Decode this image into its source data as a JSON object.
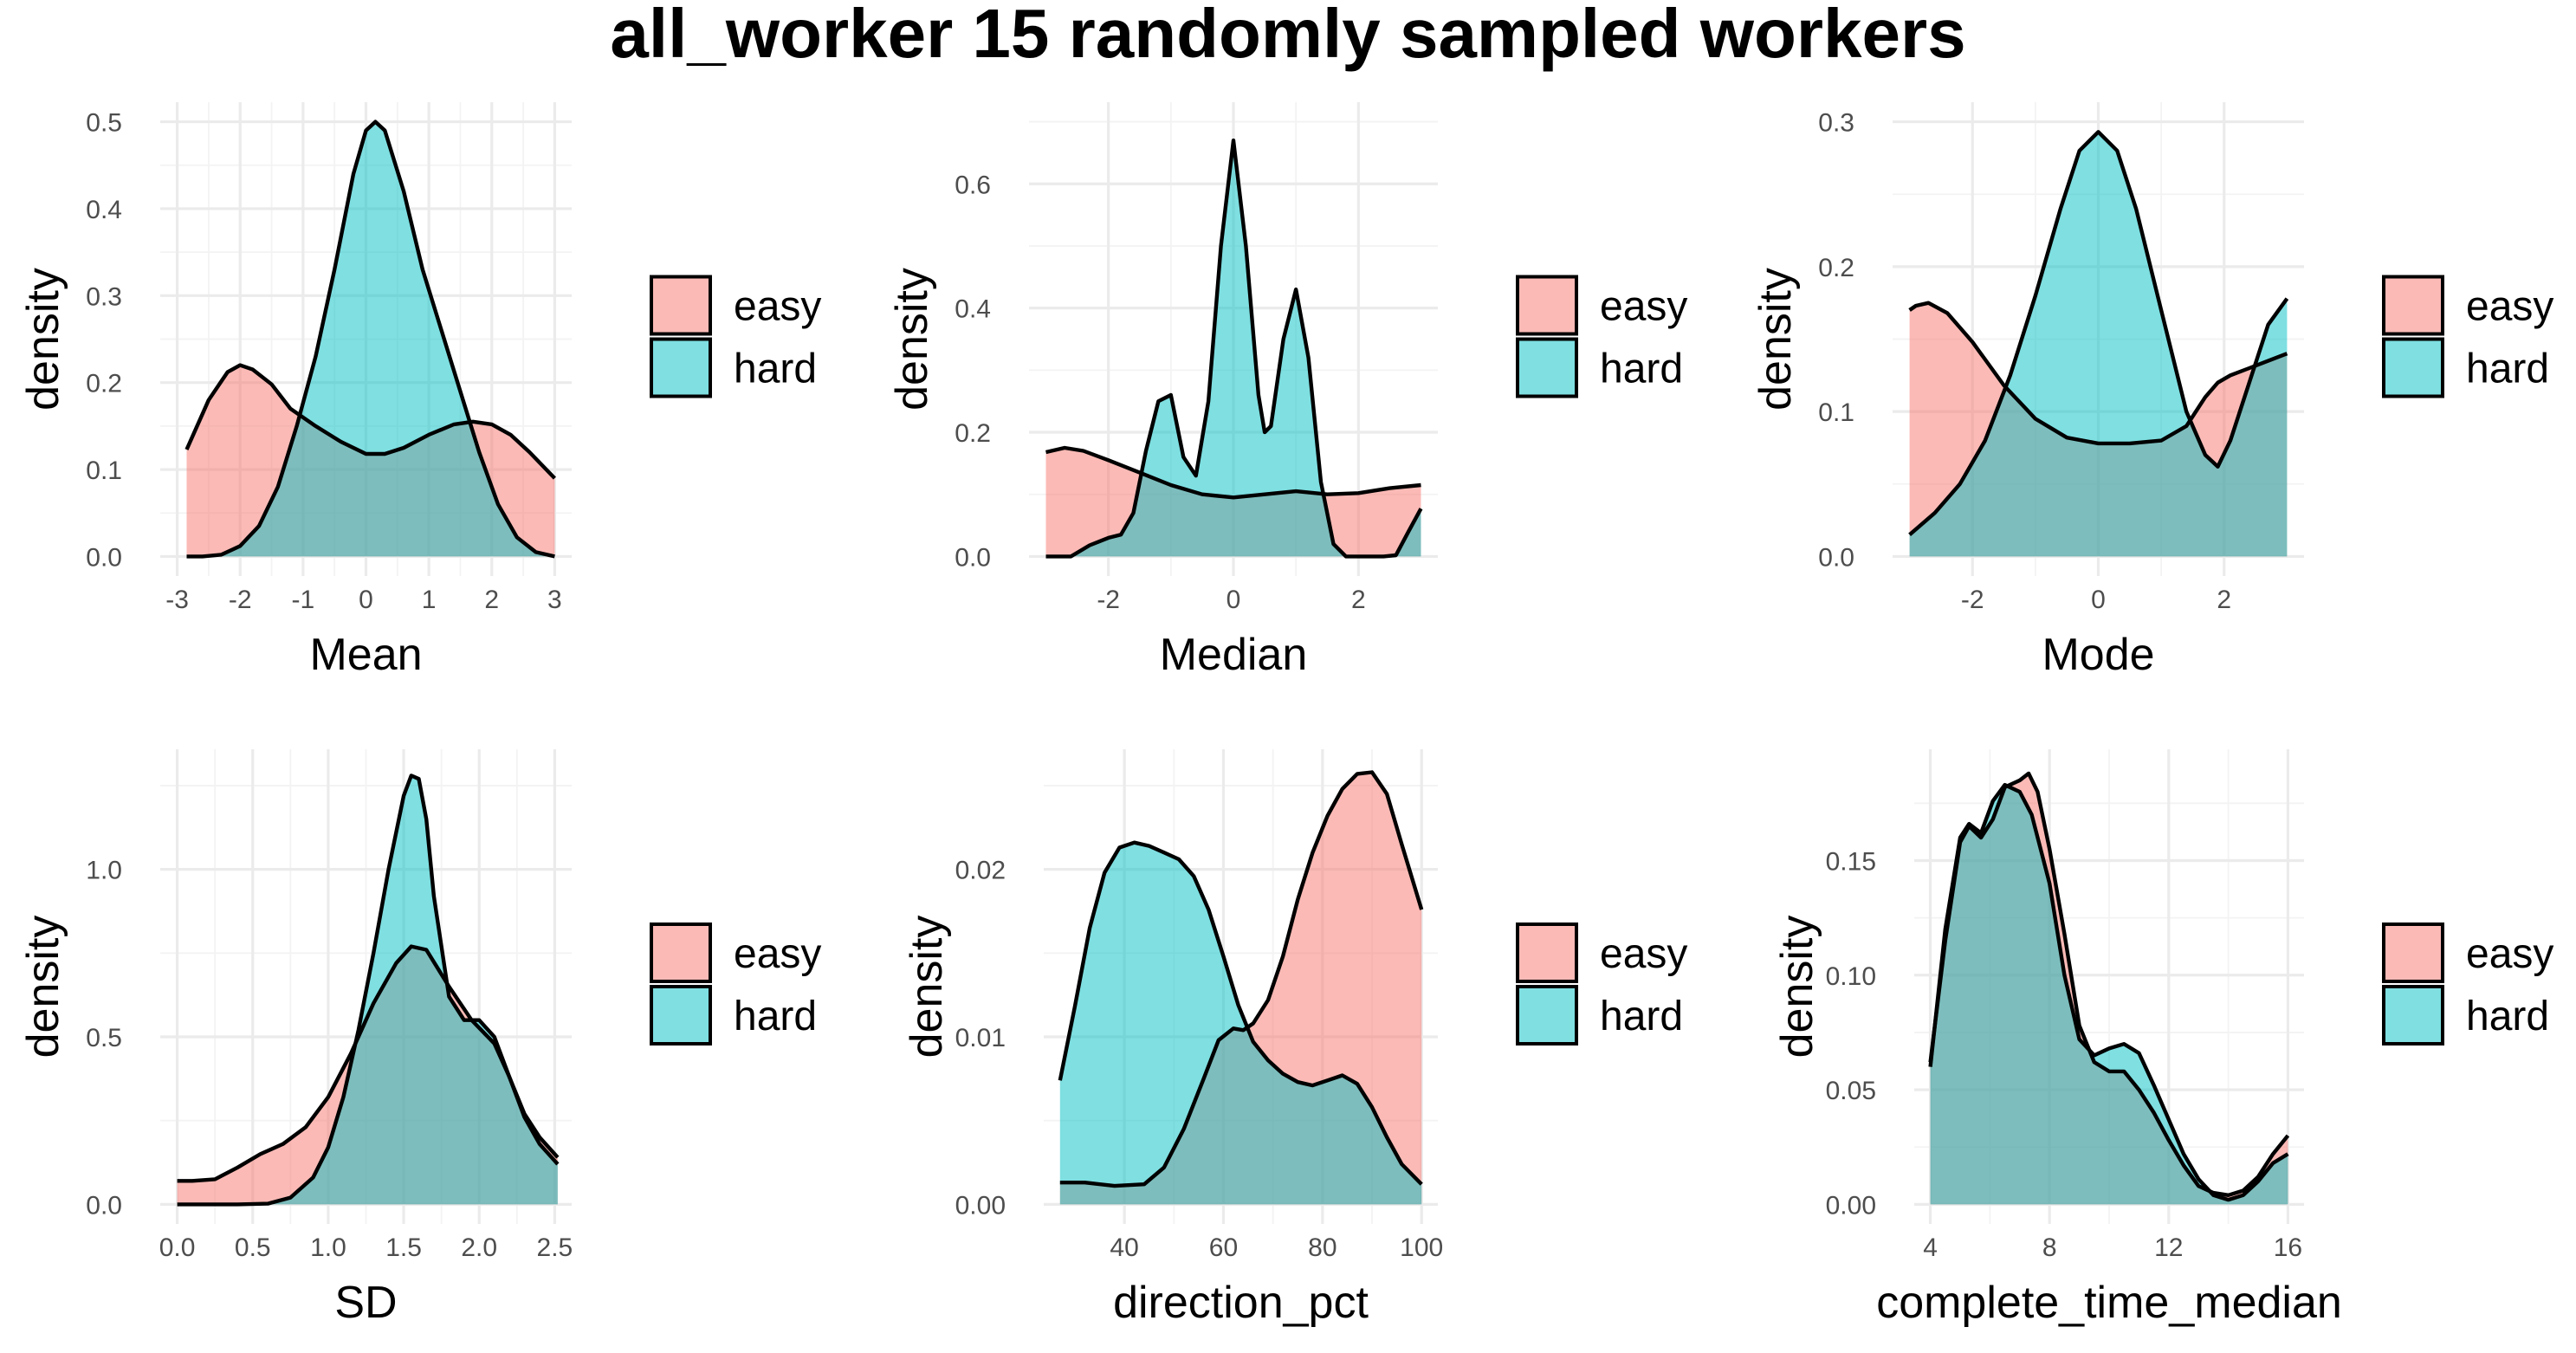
{
  "title": "all_worker 15 randomly sampled workers",
  "colors": {
    "easy": "#F8766D",
    "hard": "#00BFC4",
    "outline": "#000000",
    "fill_alpha": 0.5
  },
  "legend": {
    "items": [
      "easy",
      "hard"
    ]
  },
  "chart_data": [
    {
      "type": "area",
      "xlabel": "Mean",
      "ylabel": "density",
      "xlim": [
        -3,
        3
      ],
      "ylim": [
        0,
        0.5
      ],
      "xticks": [
        -3,
        -2,
        -1,
        0,
        1,
        2,
        3
      ],
      "xtick_labels": [
        "-3",
        "-2",
        "-1",
        "0",
        "1",
        "2",
        "3"
      ],
      "yticks": [
        0,
        0.1,
        0.2,
        0.3,
        0.4,
        0.5
      ],
      "ytick_labels": [
        "0.0",
        "0.1",
        "0.2",
        "0.3",
        "0.4",
        "0.5"
      ],
      "grid": true,
      "legend_position": "right",
      "series": [
        {
          "name": "easy",
          "x": [
            -2.85,
            -2.5,
            -2.2,
            -2.0,
            -1.8,
            -1.5,
            -1.2,
            -0.8,
            -0.4,
            0.0,
            0.3,
            0.6,
            1.0,
            1.4,
            1.7,
            2.0,
            2.3,
            2.6,
            3.0
          ],
          "y": [
            0.123,
            0.18,
            0.212,
            0.22,
            0.215,
            0.198,
            0.17,
            0.15,
            0.132,
            0.118,
            0.118,
            0.125,
            0.14,
            0.152,
            0.155,
            0.152,
            0.14,
            0.12,
            0.09
          ]
        },
        {
          "name": "hard",
          "x": [
            -2.85,
            -2.6,
            -2.3,
            -2.0,
            -1.7,
            -1.4,
            -1.1,
            -0.8,
            -0.5,
            -0.2,
            0.0,
            0.15,
            0.3,
            0.6,
            0.9,
            1.2,
            1.5,
            1.8,
            2.1,
            2.4,
            2.7,
            3.0
          ],
          "y": [
            0.0,
            0.0,
            0.002,
            0.012,
            0.035,
            0.08,
            0.15,
            0.23,
            0.33,
            0.44,
            0.49,
            0.5,
            0.49,
            0.42,
            0.33,
            0.26,
            0.19,
            0.12,
            0.06,
            0.022,
            0.005,
            0.0
          ]
        }
      ]
    },
    {
      "type": "area",
      "xlabel": "Median",
      "ylabel": "density",
      "xlim": [
        -3,
        3
      ],
      "ylim": [
        0,
        0.7
      ],
      "xticks": [
        -2,
        0,
        2
      ],
      "xtick_labels": [
        "-2",
        "0",
        "2"
      ],
      "yticks": [
        0,
        0.2,
        0.4,
        0.6
      ],
      "ytick_labels": [
        "0.0",
        "0.2",
        "0.4",
        "0.6"
      ],
      "grid": true,
      "legend_position": "right",
      "series": [
        {
          "name": "easy",
          "x": [
            -3.0,
            -2.7,
            -2.4,
            -2.0,
            -1.5,
            -1.0,
            -0.5,
            0.0,
            0.5,
            1.0,
            1.5,
            2.0,
            2.5,
            3.0
          ],
          "y": [
            0.168,
            0.175,
            0.17,
            0.155,
            0.135,
            0.115,
            0.1,
            0.095,
            0.1,
            0.105,
            0.1,
            0.102,
            0.11,
            0.115
          ]
        },
        {
          "name": "hard",
          "x": [
            -3.0,
            -2.6,
            -2.3,
            -2.0,
            -1.8,
            -1.6,
            -1.4,
            -1.2,
            -1.0,
            -0.8,
            -0.6,
            -0.4,
            -0.2,
            0.0,
            0.2,
            0.4,
            0.5,
            0.6,
            0.8,
            1.0,
            1.2,
            1.4,
            1.6,
            1.8,
            2.0,
            2.2,
            2.4,
            2.6,
            2.8,
            3.0
          ],
          "y": [
            0.0,
            0.0,
            0.018,
            0.03,
            0.035,
            0.07,
            0.17,
            0.25,
            0.26,
            0.16,
            0.13,
            0.25,
            0.5,
            0.67,
            0.5,
            0.26,
            0.2,
            0.21,
            0.35,
            0.43,
            0.32,
            0.12,
            0.02,
            0.0,
            0.0,
            0.0,
            0.0,
            0.002,
            0.04,
            0.077
          ]
        }
      ]
    },
    {
      "type": "area",
      "xlabel": "Mode",
      "ylabel": "density",
      "xlim": [
        -3,
        3
      ],
      "ylim": [
        0,
        0.3
      ],
      "xticks": [
        -2,
        0,
        2
      ],
      "xtick_labels": [
        "-2",
        "0",
        "2"
      ],
      "yticks": [
        0,
        0.1,
        0.2,
        0.3
      ],
      "ytick_labels": [
        "0.0",
        "0.1",
        "0.2",
        "0.3"
      ],
      "grid": true,
      "legend_position": "right",
      "series": [
        {
          "name": "easy",
          "x": [
            -3.0,
            -2.9,
            -2.7,
            -2.4,
            -2.0,
            -1.5,
            -1.0,
            -0.5,
            0.0,
            0.5,
            1.0,
            1.4,
            1.7,
            1.9,
            2.1,
            2.4,
            2.7,
            3.0
          ],
          "y": [
            0.17,
            0.173,
            0.175,
            0.168,
            0.148,
            0.118,
            0.095,
            0.082,
            0.078,
            0.078,
            0.08,
            0.09,
            0.11,
            0.12,
            0.125,
            0.13,
            0.135,
            0.14
          ]
        },
        {
          "name": "hard",
          "x": [
            -3.0,
            -2.6,
            -2.2,
            -1.8,
            -1.4,
            -1.0,
            -0.6,
            -0.3,
            0.0,
            0.3,
            0.6,
            1.0,
            1.4,
            1.7,
            1.9,
            2.1,
            2.4,
            2.7,
            3.0
          ],
          "y": [
            0.015,
            0.03,
            0.05,
            0.08,
            0.125,
            0.18,
            0.24,
            0.28,
            0.293,
            0.28,
            0.24,
            0.17,
            0.1,
            0.07,
            0.062,
            0.08,
            0.12,
            0.16,
            0.178
          ]
        }
      ]
    },
    {
      "type": "area",
      "xlabel": "SD",
      "ylabel": "density",
      "xlim": [
        0,
        2.5
      ],
      "ylim": [
        0,
        1.3
      ],
      "xticks": [
        0,
        0.5,
        1,
        1.5,
        2,
        2.5
      ],
      "xtick_labels": [
        "0.0",
        "0.5",
        "1.0",
        "1.5",
        "2.0",
        "2.5"
      ],
      "yticks": [
        0,
        0.5,
        1
      ],
      "ytick_labels": [
        "0.0",
        "0.5",
        "1.0"
      ],
      "grid": true,
      "legend_position": "right",
      "series": [
        {
          "name": "easy",
          "x": [
            0.0,
            0.1,
            0.25,
            0.4,
            0.55,
            0.7,
            0.85,
            1.0,
            1.15,
            1.3,
            1.45,
            1.55,
            1.65,
            1.8,
            1.95,
            2.1,
            2.2,
            2.3,
            2.4,
            2.52
          ],
          "y": [
            0.07,
            0.07,
            0.075,
            0.11,
            0.15,
            0.18,
            0.23,
            0.32,
            0.45,
            0.6,
            0.72,
            0.77,
            0.76,
            0.65,
            0.55,
            0.48,
            0.38,
            0.27,
            0.2,
            0.14
          ]
        },
        {
          "name": "hard",
          "x": [
            0.0,
            0.4,
            0.6,
            0.75,
            0.9,
            1.0,
            1.1,
            1.2,
            1.3,
            1.4,
            1.5,
            1.55,
            1.6,
            1.65,
            1.7,
            1.8,
            1.9,
            2.0,
            2.1,
            2.2,
            2.3,
            2.4,
            2.52
          ],
          "y": [
            0.0,
            0.0,
            0.002,
            0.02,
            0.08,
            0.17,
            0.32,
            0.52,
            0.75,
            1.0,
            1.22,
            1.28,
            1.27,
            1.15,
            0.92,
            0.62,
            0.55,
            0.55,
            0.5,
            0.38,
            0.26,
            0.18,
            0.12
          ]
        }
      ]
    },
    {
      "type": "area",
      "xlabel": "direction_pct",
      "ylabel": "density",
      "xlim": [
        27,
        100
      ],
      "ylim": [
        0,
        0.026
      ],
      "xticks": [
        40,
        60,
        80,
        100
      ],
      "xtick_labels": [
        "40",
        "60",
        "80",
        "100"
      ],
      "yticks": [
        0,
        0.01,
        0.02
      ],
      "ytick_labels": [
        "0.00",
        "0.01",
        "0.02"
      ],
      "grid": true,
      "legend_position": "right",
      "series": [
        {
          "name": "easy",
          "x": [
            27,
            32,
            38,
            44,
            48,
            52,
            56,
            59,
            62,
            64,
            66,
            69,
            72,
            75,
            78,
            81,
            84,
            87,
            90,
            93,
            96,
            100
          ],
          "y": [
            0.0013,
            0.0013,
            0.0011,
            0.0012,
            0.0022,
            0.0045,
            0.0075,
            0.0098,
            0.0105,
            0.0104,
            0.0108,
            0.0122,
            0.0148,
            0.0182,
            0.021,
            0.0232,
            0.0248,
            0.0257,
            0.0258,
            0.0245,
            0.0215,
            0.0176
          ]
        },
        {
          "name": "hard",
          "x": [
            27,
            30,
            33,
            36,
            39,
            42,
            45,
            48,
            51,
            54,
            57,
            60,
            63,
            66,
            69,
            72,
            75,
            78,
            81,
            84,
            87,
            90,
            93,
            96,
            100
          ],
          "y": [
            0.0074,
            0.0118,
            0.0165,
            0.0198,
            0.0213,
            0.0216,
            0.0214,
            0.021,
            0.0206,
            0.0196,
            0.0176,
            0.0148,
            0.0119,
            0.0097,
            0.0086,
            0.0078,
            0.0073,
            0.0071,
            0.0074,
            0.0077,
            0.0072,
            0.0058,
            0.004,
            0.0024,
            0.0012
          ]
        }
      ]
    },
    {
      "type": "area",
      "xlabel": "complete_time_median",
      "ylabel": "density",
      "xlim": [
        4,
        16
      ],
      "ylim": [
        0,
        0.19
      ],
      "xticks": [
        4,
        8,
        12,
        16
      ],
      "xtick_labels": [
        "4",
        "8",
        "12",
        "16"
      ],
      "yticks": [
        0,
        0.05,
        0.1,
        0.15
      ],
      "ytick_labels": [
        "0.00",
        "0.05",
        "0.10",
        "0.15"
      ],
      "grid": true,
      "legend_position": "right",
      "series": [
        {
          "name": "easy",
          "x": [
            4.0,
            4.5,
            5.0,
            5.3,
            5.7,
            6.1,
            6.5,
            7.0,
            7.3,
            7.6,
            8.0,
            8.5,
            9.0,
            9.5,
            10.0,
            10.5,
            11.0,
            11.5,
            12.0,
            12.5,
            13.0,
            13.5,
            14.0,
            14.5,
            15.0,
            15.5,
            16.0
          ],
          "y": [
            0.062,
            0.115,
            0.158,
            0.165,
            0.16,
            0.168,
            0.182,
            0.185,
            0.188,
            0.18,
            0.155,
            0.118,
            0.078,
            0.062,
            0.058,
            0.058,
            0.05,
            0.04,
            0.028,
            0.017,
            0.008,
            0.005,
            0.004,
            0.006,
            0.012,
            0.022,
            0.03
          ]
        },
        {
          "name": "hard",
          "x": [
            4.0,
            4.5,
            5.0,
            5.3,
            5.7,
            6.1,
            6.5,
            7.0,
            7.4,
            8.0,
            8.5,
            9.0,
            9.5,
            10.0,
            10.5,
            11.0,
            11.5,
            12.0,
            12.5,
            13.0,
            13.5,
            14.0,
            14.5,
            15.0,
            15.5,
            16.0
          ],
          "y": [
            0.06,
            0.12,
            0.16,
            0.166,
            0.162,
            0.176,
            0.183,
            0.18,
            0.17,
            0.14,
            0.1,
            0.072,
            0.065,
            0.068,
            0.07,
            0.066,
            0.052,
            0.037,
            0.022,
            0.011,
            0.004,
            0.002,
            0.004,
            0.01,
            0.018,
            0.022
          ]
        }
      ]
    }
  ]
}
